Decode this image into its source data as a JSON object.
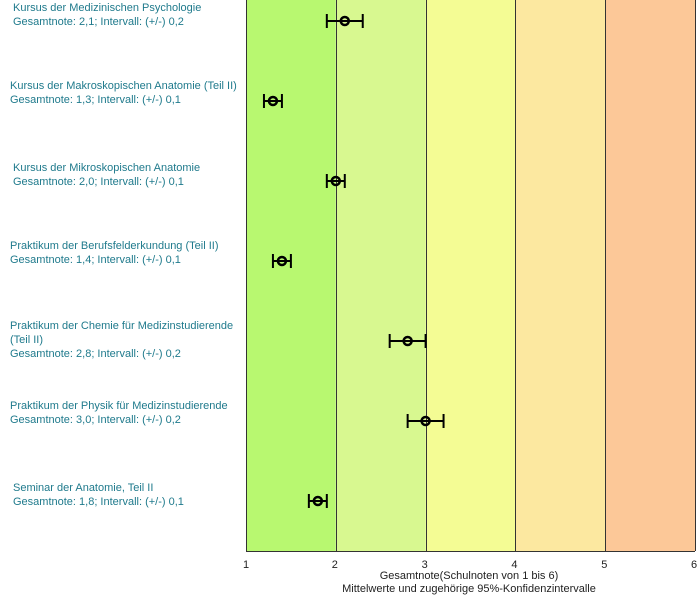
{
  "chart_data": {
    "type": "errorbar",
    "xlim": [
      1,
      6
    ],
    "xticks": [
      "1",
      "2",
      "3",
      "4",
      "5",
      "6"
    ],
    "xlabel": "Gesamtnote(Schulnoten von 1 bis 6)",
    "xlabel2": "Mittelwerte und zugehörige 95%-Konfidenzintervalle",
    "zones": [
      {
        "from": 1,
        "to": 2,
        "color": "#b8f870"
      },
      {
        "from": 2,
        "to": 3,
        "color": "#d8f890"
      },
      {
        "from": 3,
        "to": 4,
        "color": "#f4fc94"
      },
      {
        "from": 4,
        "to": 5,
        "color": "#fce8a0"
      },
      {
        "from": 5,
        "to": 6,
        "color": "#fcc898"
      }
    ],
    "items": [
      {
        "name": "Kursus der Medizinischen Psychologie",
        "value": 2.1,
        "interval": 0.2,
        "summary": "Gesamtnote: 2,1;  Intervall: (+/-) 0,2"
      },
      {
        "name": "Kursus der Makroskopischen Anatomie (Teil II)",
        "value": 1.3,
        "interval": 0.1,
        "summary": "Gesamtnote: 1,3;  Intervall: (+/-) 0,1"
      },
      {
        "name": "Kursus der Mikroskopischen Anatomie",
        "value": 2.0,
        "interval": 0.1,
        "summary": "Gesamtnote: 2,0;  Intervall: (+/-) 0,1"
      },
      {
        "name": "Praktikum der Berufsfelderkundung (Teil II)",
        "value": 1.4,
        "interval": 0.1,
        "summary": "Gesamtnote: 1,4;  Intervall: (+/-) 0,1"
      },
      {
        "name": "Praktikum der Chemie für Medizinstudierende (Teil II)",
        "value": 2.8,
        "interval": 0.2,
        "summary": "Gesamtnote: 2,8;  Intervall: (+/-) 0,2"
      },
      {
        "name": "Praktikum der Physik für Medizinstudierende",
        "value": 3.0,
        "interval": 0.2,
        "summary": "Gesamtnote: 3,0;  Intervall: (+/-) 0,2"
      },
      {
        "name": "Seminar der Anatomie, Teil II",
        "value": 1.8,
        "interval": 0.1,
        "summary": "Gesamtnote: 1,8;  Intervall: (+/-) 0,1"
      }
    ]
  }
}
